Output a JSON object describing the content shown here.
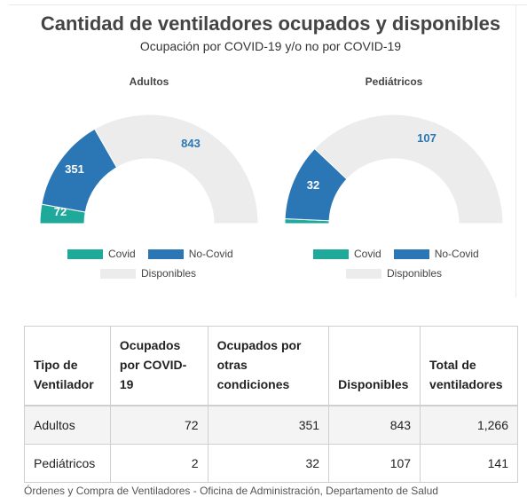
{
  "title": "Cantidad de ventiladores ocupados y disponibles",
  "subtitle": "Ocupación por COVID-19 y/o no por COVID-19",
  "colors": {
    "covid": "#1fa99b",
    "nocovid": "#2b77b5",
    "disponibles": "#ececec"
  },
  "legend": {
    "covid": "Covid",
    "nocovid": "No-Covid",
    "disponibles": "Disponibles"
  },
  "chart_data": [
    {
      "type": "gauge",
      "title": "Adultos",
      "categories": [
        "Covid",
        "No-Covid",
        "Disponibles"
      ],
      "values": [
        72,
        351,
        843
      ],
      "labels": [
        "72",
        "351",
        "843"
      ]
    },
    {
      "type": "gauge",
      "title": "Pediátricos",
      "categories": [
        "Covid",
        "No-Covid",
        "Disponibles"
      ],
      "values": [
        2,
        32,
        107
      ],
      "labels": [
        "",
        "32",
        "107"
      ]
    }
  ],
  "table": {
    "headers": [
      "Tipo de Ventilador",
      "Ocupados por COVID-19",
      "Ocupados por otras condiciones",
      "Disponibles",
      "Total de ventiladores"
    ],
    "rows": [
      [
        "Adultos",
        "72",
        "351",
        "843",
        "1,266"
      ],
      [
        "Pediátricos",
        "2",
        "32",
        "107",
        "141"
      ]
    ]
  },
  "source": "Órdenes y Compra de Ventiladores - Oficina de Administración, Departamento de Salud"
}
